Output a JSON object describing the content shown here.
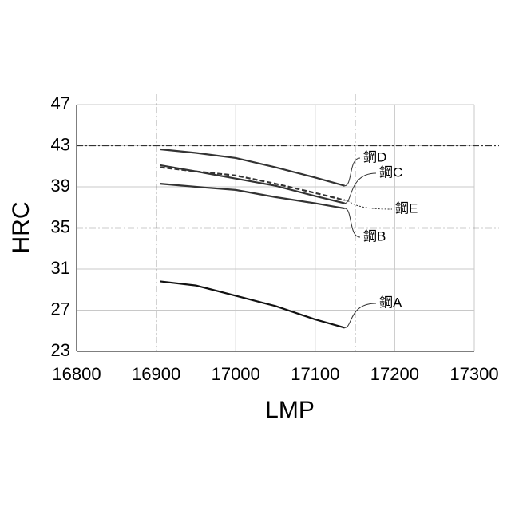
{
  "chart_data": {
    "type": "line",
    "x_label": "LMP",
    "y_label": "HRC",
    "x": [
      16905,
      16950,
      17000,
      17050,
      17100,
      17137
    ],
    "series": [
      {
        "name": "鋼D",
        "color": "#333333",
        "dash": false,
        "values": [
          42.65,
          42.3,
          41.8,
          40.9,
          39.9,
          39.1
        ]
      },
      {
        "name": "鋼C",
        "color": "#333333",
        "dash": false,
        "values": [
          41.1,
          40.5,
          39.8,
          39.1,
          38.1,
          37.4
        ]
      },
      {
        "name": "鋼E",
        "color": "#333333",
        "dash": true,
        "values": [
          40.9,
          40.5,
          40.1,
          39.3,
          38.4,
          37.7
        ]
      },
      {
        "name": "鋼B",
        "color": "#333333",
        "dash": false,
        "values": [
          39.3,
          39.0,
          38.7,
          38.0,
          37.4,
          36.9
        ]
      },
      {
        "name": "鋼A",
        "color": "#111111",
        "dash": false,
        "values": [
          29.8,
          29.4,
          28.4,
          27.4,
          26.1,
          25.3
        ]
      }
    ],
    "xlim": [
      16800,
      17300
    ],
    "xticks": [
      16800,
      16900,
      17000,
      17100,
      17200,
      17300
    ],
    "ylim": [
      23,
      47
    ],
    "yticks": [
      23,
      27,
      31,
      35,
      39,
      43,
      47
    ],
    "grid": true,
    "reference_lines": {
      "x": [
        16900,
        17150
      ],
      "y": [
        43,
        35
      ]
    }
  }
}
